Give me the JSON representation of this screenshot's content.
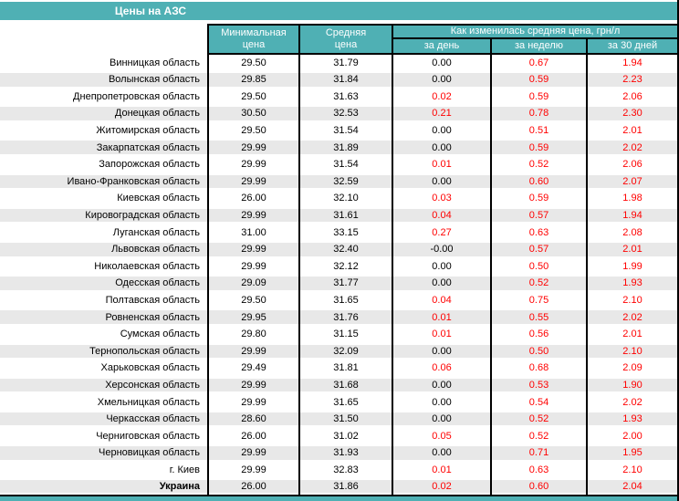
{
  "title": "Цены на АЗС",
  "header": {
    "min_price": "Минимальная\nцена",
    "avg_price": "Средняя\nцена",
    "change_group": "Как изменилась средняя цена, грн/л",
    "sub_day": "за день",
    "sub_week": "за неделю",
    "sub_month": "за 30 дней"
  },
  "colors": {
    "accent_teal": "#4FB0B4",
    "row_band": "#E8E8E8",
    "border": "#000000",
    "value_zero": "#000000",
    "value_positive": "#FF0000"
  },
  "rows": [
    {
      "region": "Винницкая область",
      "min": "29.50",
      "avg": "31.79",
      "day": "0.00",
      "week": "0.67",
      "month": "1.94"
    },
    {
      "region": "Волынская область",
      "min": "29.85",
      "avg": "31.84",
      "day": "0.00",
      "week": "0.59",
      "month": "2.23"
    },
    {
      "region": "Днепропетровская область",
      "min": "29.50",
      "avg": "31.63",
      "day": "0.02",
      "week": "0.59",
      "month": "2.06"
    },
    {
      "region": "Донецкая область",
      "min": "30.50",
      "avg": "32.53",
      "day": "0.21",
      "week": "0.78",
      "month": "2.30"
    },
    {
      "region": "Житомирская область",
      "min": "29.50",
      "avg": "31.54",
      "day": "0.00",
      "week": "0.51",
      "month": "2.01"
    },
    {
      "region": "Закарпатская область",
      "min": "29.99",
      "avg": "31.89",
      "day": "0.00",
      "week": "0.59",
      "month": "2.02"
    },
    {
      "region": "Запорожская область",
      "min": "29.99",
      "avg": "31.54",
      "day": "0.01",
      "week": "0.52",
      "month": "2.06"
    },
    {
      "region": "Ивано-Франковская область",
      "min": "29.99",
      "avg": "32.59",
      "day": "0.00",
      "week": "0.60",
      "month": "2.07"
    },
    {
      "region": "Киевская область",
      "min": "26.00",
      "avg": "32.10",
      "day": "0.03",
      "week": "0.59",
      "month": "1.98"
    },
    {
      "region": "Кировоградская область",
      "min": "29.99",
      "avg": "31.61",
      "day": "0.04",
      "week": "0.57",
      "month": "1.94"
    },
    {
      "region": "Луганская область",
      "min": "31.00",
      "avg": "33.15",
      "day": "0.27",
      "week": "0.63",
      "month": "2.08"
    },
    {
      "region": "Львовская область",
      "min": "29.99",
      "avg": "32.40",
      "day": "-0.00",
      "week": "0.57",
      "month": "2.01"
    },
    {
      "region": "Николаевская область",
      "min": "29.99",
      "avg": "32.12",
      "day": "0.00",
      "week": "0.50",
      "month": "1.99"
    },
    {
      "region": "Одесская область",
      "min": "29.09",
      "avg": "31.77",
      "day": "0.00",
      "week": "0.52",
      "month": "1.93"
    },
    {
      "region": "Полтавская область",
      "min": "29.50",
      "avg": "31.65",
      "day": "0.04",
      "week": "0.75",
      "month": "2.10"
    },
    {
      "region": "Ровненская область",
      "min": "29.95",
      "avg": "31.76",
      "day": "0.01",
      "week": "0.55",
      "month": "2.02"
    },
    {
      "region": "Сумская область",
      "min": "29.80",
      "avg": "31.15",
      "day": "0.01",
      "week": "0.56",
      "month": "2.01"
    },
    {
      "region": "Тернопольская область",
      "min": "29.99",
      "avg": "32.09",
      "day": "0.00",
      "week": "0.50",
      "month": "2.10"
    },
    {
      "region": "Харьковская область",
      "min": "29.49",
      "avg": "31.81",
      "day": "0.06",
      "week": "0.68",
      "month": "2.09"
    },
    {
      "region": "Херсонская область",
      "min": "29.99",
      "avg": "31.68",
      "day": "0.00",
      "week": "0.53",
      "month": "1.90"
    },
    {
      "region": "Хмельницкая область",
      "min": "29.99",
      "avg": "31.65",
      "day": "0.00",
      "week": "0.54",
      "month": "2.02"
    },
    {
      "region": "Черкасская область",
      "min": "28.60",
      "avg": "31.50",
      "day": "0.00",
      "week": "0.52",
      "month": "1.93"
    },
    {
      "region": "Черниговская область",
      "min": "26.00",
      "avg": "31.02",
      "day": "0.05",
      "week": "0.52",
      "month": "2.00"
    },
    {
      "region": "Черновицкая область",
      "min": "29.99",
      "avg": "31.93",
      "day": "0.00",
      "week": "0.71",
      "month": "1.95"
    },
    {
      "region": "г. Киев",
      "min": "29.99",
      "avg": "32.83",
      "day": "0.01",
      "week": "0.63",
      "month": "2.10"
    },
    {
      "region": "Украина",
      "min": "26.00",
      "avg": "31.86",
      "day": "0.02",
      "week": "0.60",
      "month": "2.04",
      "summary": true
    }
  ]
}
